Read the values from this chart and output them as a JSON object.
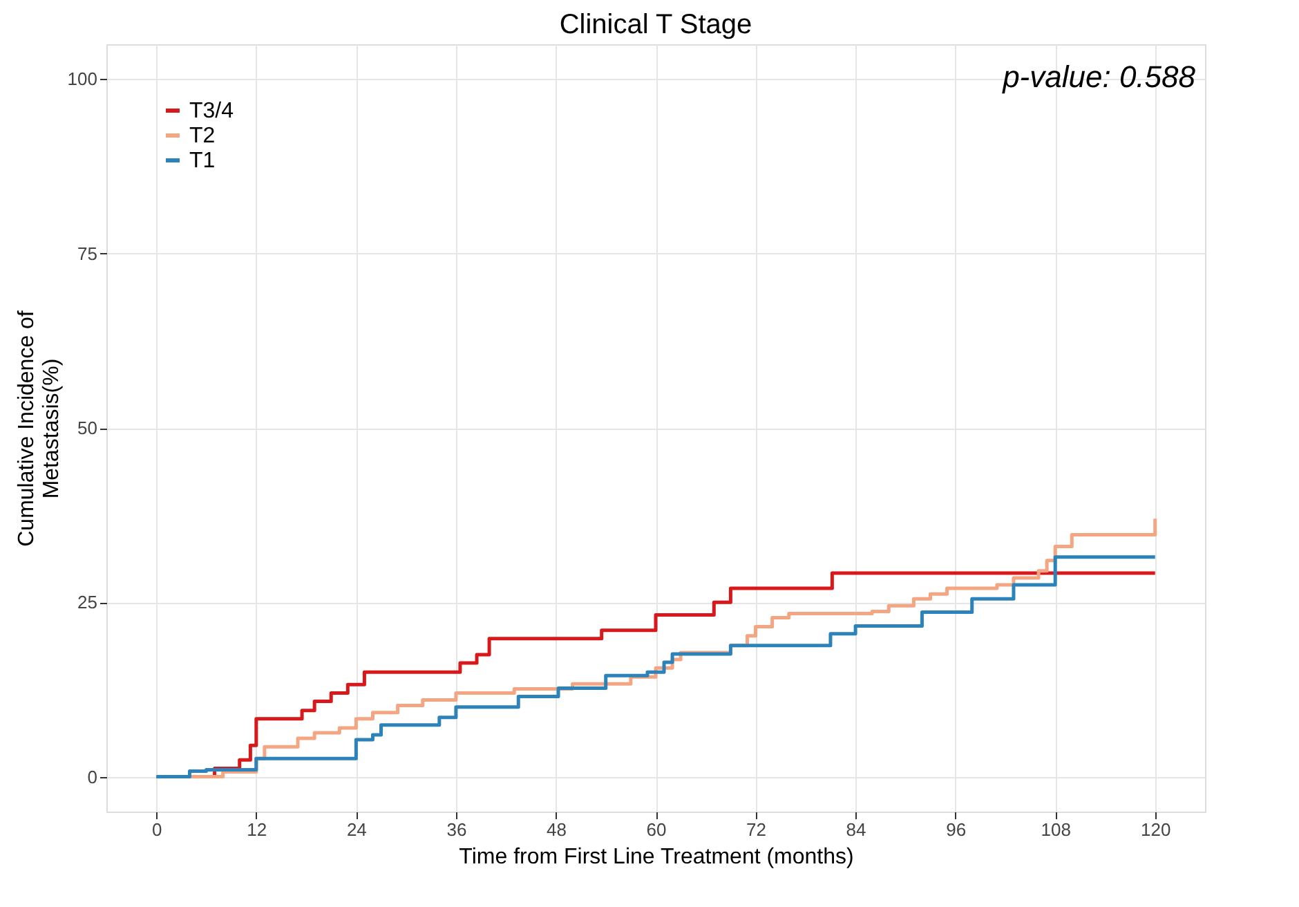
{
  "chart_data": {
    "type": "step",
    "title": "Clinical T Stage",
    "xlabel": "Time from First Line Treatment (months)",
    "ylabel": "Cumulative Incidence of Metastasis(%)",
    "xlim": [
      -6,
      126
    ],
    "ylim": [
      -5,
      105
    ],
    "xticks": [
      0,
      12,
      24,
      36,
      48,
      60,
      72,
      84,
      96,
      108,
      120
    ],
    "yticks": [
      0,
      25,
      50,
      75,
      100
    ],
    "grid": true,
    "legend": "top left",
    "line_style": "solid",
    "marker": "none",
    "annotations": [
      "p-value: 0.588"
    ],
    "series": [
      {
        "name": "T3/4",
        "color": "#d7191c",
        "x": [
          0,
          7,
          10,
          11.3,
          12,
          17.5,
          19,
          21,
          23,
          25,
          36.5,
          38.5,
          40,
          53.5,
          60,
          67,
          69,
          81.2,
          120
        ],
        "values": [
          0,
          1.2,
          2.4,
          4.5,
          8.3,
          9.5,
          10.8,
          12,
          13.2,
          15,
          16.3,
          17.5,
          19.8,
          21,
          23.2,
          25,
          27,
          29.2,
          29.2
        ]
      },
      {
        "name": "T2",
        "color": "#f4a582",
        "x": [
          0,
          8,
          12,
          13,
          17,
          19,
          22,
          24,
          26,
          29,
          32,
          36,
          43,
          50,
          57,
          60,
          62,
          63,
          69,
          71,
          72,
          74,
          76,
          86,
          88,
          91,
          93,
          95,
          101,
          103,
          106,
          107,
          108,
          110,
          120,
          120
        ],
        "values": [
          0,
          0.7,
          2.6,
          4.3,
          5.5,
          6.3,
          7,
          8.3,
          9.2,
          10.2,
          11,
          12,
          12.6,
          13.3,
          14.3,
          15.6,
          16.8,
          17.8,
          18.8,
          20.2,
          21.5,
          22.8,
          23.4,
          23.7,
          24.5,
          25.5,
          26.2,
          27,
          27.5,
          28.5,
          29.5,
          31,
          33,
          34.7,
          34.7,
          37
        ]
      },
      {
        "name": "T1",
        "color": "#2b83ba",
        "x": [
          0,
          4,
          6,
          12,
          24,
          26,
          27,
          34,
          36,
          43.5,
          48.3,
          54,
          59,
          61,
          62,
          69,
          81,
          84,
          92,
          98,
          103,
          108,
          120
        ],
        "values": [
          0,
          0.8,
          1.0,
          2.6,
          5.3,
          6,
          7.4,
          8.5,
          10,
          11.5,
          12.7,
          14.5,
          15,
          16.4,
          17.6,
          18.8,
          20.5,
          21.6,
          23.6,
          25.5,
          27.5,
          31.5,
          31.5
        ]
      }
    ]
  }
}
